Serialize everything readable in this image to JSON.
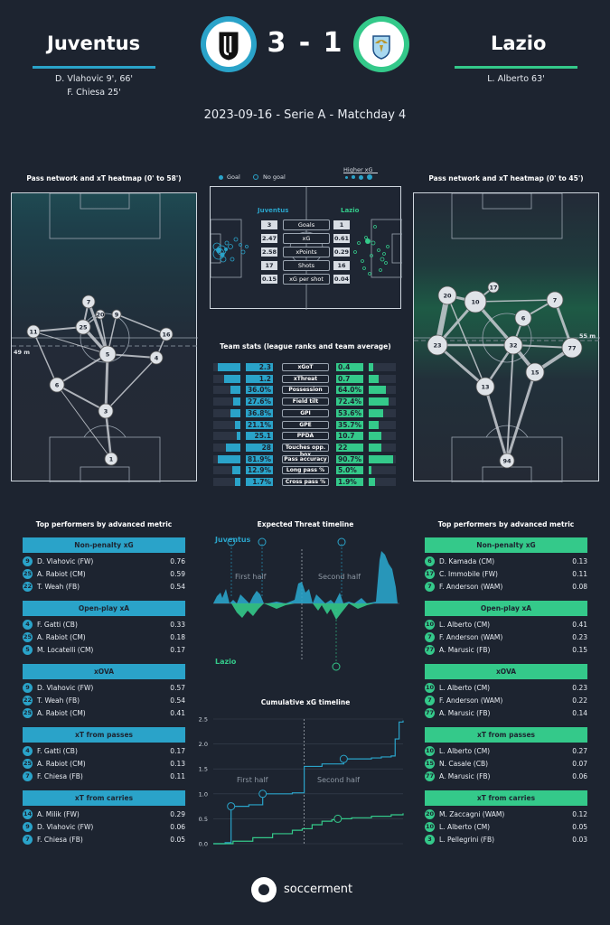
{
  "header": {
    "home_team": "Juventus",
    "away_team": "Lazio",
    "score": "3 - 1",
    "home_scorers": [
      "D. Vlahovic 9', 66'",
      "F. Chiesa 25'"
    ],
    "away_scorers": [
      "L. Alberto 63'"
    ],
    "match_info": "2023-09-16 - Serie A - Matchday 4",
    "home_color": "#2aa3c9",
    "away_color": "#34c98a"
  },
  "pass_network": {
    "home_title": "Pass network and xT heatmap (0' to 58')",
    "away_title": "Pass network and xT heatmap (0' to 45')",
    "home_line_label": "49 m",
    "away_line_label": "55 m",
    "home_players": [
      "7",
      "20",
      "9",
      "25",
      "11",
      "16",
      "5",
      "4",
      "6",
      "3",
      "1"
    ],
    "away_players": [
      "17",
      "20",
      "10",
      "7",
      "6",
      "23",
      "32",
      "77",
      "15",
      "13",
      "94"
    ]
  },
  "shot_map": {
    "legend_goal": "Goal",
    "legend_no_goal": "No goal",
    "legend_higher_xg": "Higher xG",
    "home_label": "Juventus",
    "away_label": "Lazio",
    "rows": [
      {
        "home": "3",
        "label": "Goals",
        "away": "1"
      },
      {
        "home": "2.47",
        "label": "xG",
        "away": "0.61"
      },
      {
        "home": "2.58",
        "label": "xPoints",
        "away": "0.29"
      },
      {
        "home": "17",
        "label": "Shots",
        "away": "16"
      },
      {
        "home": "0.15",
        "label": "xG per shot",
        "away": "0.04"
      }
    ]
  },
  "team_stats": {
    "title": "Team stats (league ranks and team average)",
    "rows": [
      {
        "home": "2.3",
        "label": "xGoT",
        "away": "0.4",
        "home_fill": 0.85,
        "away_fill": 0.15
      },
      {
        "home": "1.2",
        "label": "xThreat",
        "away": "0.7",
        "home_fill": 0.6,
        "away_fill": 0.35
      },
      {
        "home": "36.0%",
        "label": "Possession",
        "away": "64.0%",
        "home_fill": 0.36,
        "away_fill": 0.64
      },
      {
        "home": "27.6%",
        "label": "Field tilt",
        "away": "72.4%",
        "home_fill": 0.28,
        "away_fill": 0.72
      },
      {
        "home": "36.8%",
        "label": "GPI",
        "away": "53.6%",
        "home_fill": 0.37,
        "away_fill": 0.54
      },
      {
        "home": "21.1%",
        "label": "GPE",
        "away": "35.7%",
        "home_fill": 0.21,
        "away_fill": 0.36
      },
      {
        "home": "25.1",
        "label": "PPDA",
        "away": "10.7",
        "home_fill": 0.15,
        "away_fill": 0.45
      },
      {
        "home": "28",
        "label": "Touches opp. box",
        "away": "22",
        "home_fill": 0.55,
        "away_fill": 0.45
      },
      {
        "home": "81.9%",
        "label": "Pass accuracy",
        "away": "90.7%",
        "home_fill": 0.82,
        "away_fill": 0.91
      },
      {
        "home": "12.9%",
        "label": "Long pass %",
        "away": "5.0%",
        "home_fill": 0.3,
        "away_fill": 0.1
      },
      {
        "home": "1.7%",
        "label": "Cross pass %",
        "away": "1.9%",
        "home_fill": 0.2,
        "away_fill": 0.22
      }
    ]
  },
  "xt_timeline": {
    "title": "Expected Threat timeline",
    "home_label": "Juventus",
    "away_label": "Lazio",
    "first_half": "First half",
    "second_half": "Second half"
  },
  "chart_data": {
    "type": "line",
    "title": "Cumulative xG timeline",
    "ylim": [
      0,
      2.5
    ],
    "yticks": [
      "0.0",
      "0.5",
      "1.0",
      "1.5",
      "2.0",
      "2.5"
    ],
    "annotations": [
      "First half",
      "Second half"
    ],
    "series": [
      {
        "name": "Juventus",
        "color": "#2aa3c9",
        "x": [
          0,
          6,
          9,
          9,
          18,
          25,
          25,
          40,
          46,
          55,
          66,
          66,
          80,
          85,
          90,
          92,
          94,
          96
        ],
        "y": [
          0,
          0.02,
          0.05,
          0.75,
          0.78,
          0.82,
          1.0,
          1.02,
          1.55,
          1.6,
          1.66,
          1.7,
          1.72,
          1.74,
          1.76,
          2.1,
          2.44,
          2.47
        ]
      },
      {
        "name": "Lazio",
        "color": "#34c98a",
        "x": [
          0,
          10,
          20,
          30,
          40,
          45,
          50,
          55,
          60,
          63,
          70,
          80,
          90,
          96
        ],
        "y": [
          0,
          0.05,
          0.12,
          0.2,
          0.27,
          0.3,
          0.38,
          0.45,
          0.48,
          0.5,
          0.52,
          0.55,
          0.58,
          0.61
        ]
      }
    ]
  },
  "performers": {
    "title": "Top performers by advanced metric",
    "home": [
      {
        "metric": "Non-penalty xG",
        "players": [
          {
            "num": "9",
            "name": "D. Vlahovic (FW)",
            "val": "0.76"
          },
          {
            "num": "25",
            "name": "A. Rabiot (CM)",
            "val": "0.59"
          },
          {
            "num": "22",
            "name": "T. Weah (FB)",
            "val": "0.54"
          }
        ]
      },
      {
        "metric": "Open-play xA",
        "players": [
          {
            "num": "4",
            "name": "F. Gatti (CB)",
            "val": "0.33"
          },
          {
            "num": "25",
            "name": "A. Rabiot (CM)",
            "val": "0.18"
          },
          {
            "num": "5",
            "name": "M. Locatelli (CM)",
            "val": "0.17"
          }
        ]
      },
      {
        "metric": "xOVA",
        "players": [
          {
            "num": "9",
            "name": "D. Vlahovic (FW)",
            "val": "0.57"
          },
          {
            "num": "22",
            "name": "T. Weah (FB)",
            "val": "0.54"
          },
          {
            "num": "25",
            "name": "A. Rabiot (CM)",
            "val": "0.41"
          }
        ]
      },
      {
        "metric": "xT from passes",
        "players": [
          {
            "num": "4",
            "name": "F. Gatti (CB)",
            "val": "0.17"
          },
          {
            "num": "25",
            "name": "A. Rabiot (CM)",
            "val": "0.13"
          },
          {
            "num": "7",
            "name": "F. Chiesa (FB)",
            "val": "0.11"
          }
        ]
      },
      {
        "metric": "xT from carries",
        "players": [
          {
            "num": "14",
            "name": "A. Milik (FW)",
            "val": "0.29"
          },
          {
            "num": "9",
            "name": "D. Vlahovic (FW)",
            "val": "0.06"
          },
          {
            "num": "7",
            "name": "F. Chiesa (FB)",
            "val": "0.05"
          }
        ]
      }
    ],
    "away": [
      {
        "metric": "Non-penalty xG",
        "players": [
          {
            "num": "6",
            "name": "D. Kamada (CM)",
            "val": "0.13"
          },
          {
            "num": "17",
            "name": "C. Immobile (FW)",
            "val": "0.11"
          },
          {
            "num": "7",
            "name": "F. Anderson (WAM)",
            "val": "0.08"
          }
        ]
      },
      {
        "metric": "Open-play xA",
        "players": [
          {
            "num": "10",
            "name": "L. Alberto (CM)",
            "val": "0.41"
          },
          {
            "num": "7",
            "name": "F. Anderson (WAM)",
            "val": "0.23"
          },
          {
            "num": "77",
            "name": "A. Marusic (FB)",
            "val": "0.15"
          }
        ]
      },
      {
        "metric": "xOVA",
        "players": [
          {
            "num": "10",
            "name": "L. Alberto (CM)",
            "val": "0.23"
          },
          {
            "num": "7",
            "name": "F. Anderson (WAM)",
            "val": "0.22"
          },
          {
            "num": "77",
            "name": "A. Marusic (FB)",
            "val": "0.14"
          }
        ]
      },
      {
        "metric": "xT from passes",
        "players": [
          {
            "num": "10",
            "name": "L. Alberto (CM)",
            "val": "0.27"
          },
          {
            "num": "15",
            "name": "N. Casale (CB)",
            "val": "0.07"
          },
          {
            "num": "77",
            "name": "A. Marusic (FB)",
            "val": "0.06"
          }
        ]
      },
      {
        "metric": "xT from carries",
        "players": [
          {
            "num": "20",
            "name": "M. Zaccagni (WAM)",
            "val": "0.12"
          },
          {
            "num": "10",
            "name": "L. Alberto (CM)",
            "val": "0.05"
          },
          {
            "num": "3",
            "name": "L. Pellegrini (FB)",
            "val": "0.03"
          }
        ]
      }
    ]
  },
  "footer": {
    "brand": "soccerment"
  }
}
